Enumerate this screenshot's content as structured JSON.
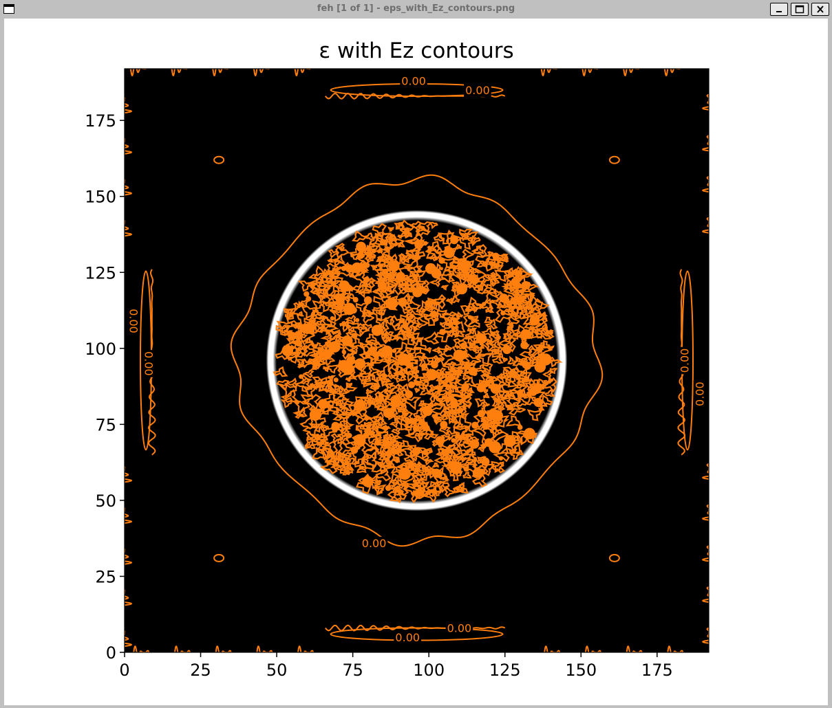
{
  "window": {
    "title": "feh [1 of 1] - eps_with_Ez_contours.png",
    "buttons": [
      "minimize",
      "maximize",
      "close"
    ]
  },
  "colors": {
    "contour": "#ff7f0e",
    "background": "#000000",
    "ring": "#ffffff"
  },
  "chart_data": {
    "type": "heatmap",
    "title": "ε with Ez contours",
    "xlabel": "",
    "ylabel": "",
    "xlim": [
      0,
      192
    ],
    "ylim": [
      0,
      192
    ],
    "xticks": [
      0,
      25,
      50,
      75,
      100,
      125,
      150,
      175
    ],
    "yticks": [
      0,
      25,
      50,
      75,
      100,
      125,
      150,
      175
    ],
    "colormap": "gray",
    "ring": {
      "center": [
        96,
        96
      ],
      "radius": 48,
      "thickness": 3
    },
    "contour_level": 0.0,
    "contour_labels": [
      {
        "text": "0.00",
        "x": 95,
        "y": 188
      },
      {
        "text": "0.00",
        "x": 116,
        "y": 185
      },
      {
        "text": "0.00",
        "x": 82,
        "y": 36
      },
      {
        "text": "0.00",
        "x": 110,
        "y": 8
      },
      {
        "text": "0.00",
        "x": 93,
        "y": 5
      },
      {
        "text": "0.00",
        "x": 3,
        "y": 109
      },
      {
        "text": "0.00",
        "x": 8,
        "y": 95
      },
      {
        "text": "0.00",
        "x": 184,
        "y": 96
      },
      {
        "text": "0.00",
        "x": 189,
        "y": 85
      }
    ],
    "grid": false,
    "legend": "none"
  }
}
